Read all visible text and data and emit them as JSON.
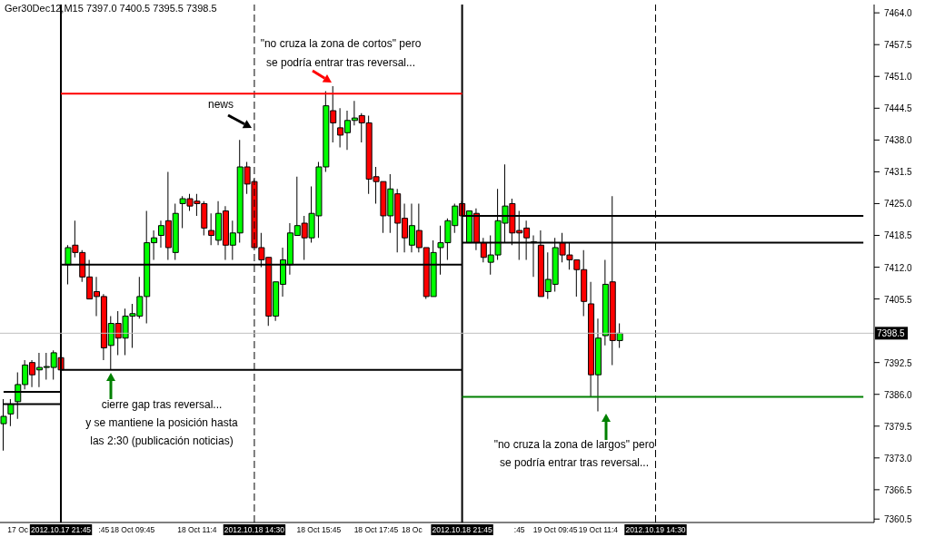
{
  "chart_data": {
    "type": "candlestick",
    "title": "Ger30Dec12,M15  7397.0 7400.5 7395.5 7398.5",
    "categories": [
      null,
      null,
      "17 Oc",
      null,
      null,
      null,
      null,
      null,
      "2012.10.17 21:45",
      null,
      null,
      null,
      null,
      null,
      ":45",
      null,
      null,
      null,
      "18 Oct 09:45",
      null,
      null,
      null,
      null,
      null,
      null,
      null,
      null,
      "18 Oct 11:4",
      null,
      null,
      null,
      null,
      null,
      null,
      null,
      "2012.10.18 14:30",
      null,
      null,
      null,
      null,
      null,
      null,
      null,
      null,
      "18 Oct 15:45",
      null,
      null,
      null,
      null,
      null,
      null,
      null,
      "18 Oct 17:45",
      null,
      null,
      null,
      null,
      "18 Oc",
      null,
      null,
      null,
      null,
      null,
      null,
      "2012.10.18 21:45",
      null,
      null,
      null,
      null,
      null,
      null,
      null,
      ":45",
      null,
      null,
      null,
      null,
      "19 Oct 09:45",
      null,
      null,
      null,
      null,
      null,
      "19 Oct 11:4",
      null,
      null,
      null,
      null,
      null,
      null,
      null,
      "2012.10.19 14:30",
      null,
      null,
      null,
      null,
      null,
      null,
      null,
      null,
      null,
      null,
      null,
      null,
      null,
      null,
      null,
      null,
      null,
      null,
      null,
      null,
      null,
      null,
      null,
      null,
      null,
      null,
      null,
      null,
      null,
      null
    ],
    "ohlc": [
      [
        7380,
        7385,
        7374.5,
        7381.5
      ],
      [
        7382,
        7385,
        7379.5,
        7384
      ],
      [
        7384.5,
        7390.5,
        7381,
        7388
      ],
      [
        7388,
        7393,
        7387,
        7392
      ],
      [
        7392.5,
        7393,
        7387.5,
        7390
      ],
      [
        7391,
        7394.5,
        7387.5,
        7391.5
      ],
      [
        7391.5,
        7394.5,
        7389,
        7391.5
      ],
      [
        7391.5,
        7395,
        7389,
        7394.5
      ],
      [
        7393.5,
        7394,
        7390.5,
        7391
      ],
      [
        7412.5,
        7416.5,
        7408.5,
        7416
      ],
      [
        7416.5,
        7421.5,
        7414,
        7415
      ],
      [
        7415,
        7415.5,
        7409,
        7410
      ],
      [
        7410,
        7413.5,
        7405.5,
        7405.5
      ],
      [
        7407,
        7410,
        7402,
        7406
      ],
      [
        7406,
        7406.5,
        7393,
        7395.5
      ],
      [
        7396,
        7402,
        7391,
        7400.5
      ],
      [
        7400.5,
        7403,
        7394,
        7397.5
      ],
      [
        7397.5,
        7403.5,
        7394,
        7402
      ],
      [
        7402,
        7404.5,
        7395.5,
        7402.5
      ],
      [
        7402,
        7410,
        7401.5,
        7406
      ],
      [
        7406,
        7423.5,
        7400.5,
        7417
      ],
      [
        7417,
        7419.5,
        7413.5,
        7418
      ],
      [
        7418.5,
        7421.5,
        7416,
        7420.5
      ],
      [
        7421.5,
        7431.5,
        7413.5,
        7416
      ],
      [
        7415,
        7425,
        7413.5,
        7423
      ],
      [
        7425,
        7426.5,
        7420,
        7426
      ],
      [
        7426,
        7427,
        7423.5,
        7424.5
      ],
      [
        7425.5,
        7427,
        7422.5,
        7425
      ],
      [
        7425,
        7425.5,
        7418.5,
        7420
      ],
      [
        7419.5,
        7423,
        7416.5,
        7418.5
      ],
      [
        7417.5,
        7425.5,
        7416.5,
        7423
      ],
      [
        7423.5,
        7424.5,
        7413.5,
        7416.5
      ],
      [
        7416.5,
        7421.5,
        7413.5,
        7419
      ],
      [
        7419,
        7438,
        7417,
        7432.5
      ],
      [
        7432.5,
        7433.5,
        7427,
        7429
      ],
      [
        7429.5,
        7430,
        7416,
        7416
      ],
      [
        7416,
        7419,
        7412,
        7413.5
      ],
      [
        7414,
        7414,
        7400,
        7402
      ],
      [
        7402,
        7409,
        7401,
        7409
      ],
      [
        7408.5,
        7416,
        7406,
        7413.5
      ],
      [
        7412.5,
        7421,
        7410.5,
        7419
      ],
      [
        7418.5,
        7430.5,
        7418.5,
        7420.5
      ],
      [
        7421,
        7422.5,
        7413.5,
        7418
      ],
      [
        7418,
        7428.5,
        7417,
        7423
      ],
      [
        7422.5,
        7433.5,
        7418,
        7432.5
      ],
      [
        7432.5,
        7448,
        7431.5,
        7445
      ],
      [
        7444,
        7449,
        7437.5,
        7441.5
      ],
      [
        7440.5,
        7444.5,
        7436.5,
        7439
      ],
      [
        7439.5,
        7444,
        7436,
        7442
      ],
      [
        7442,
        7446,
        7441,
        7442.5
      ],
      [
        7443,
        7443.5,
        7437.5,
        7441.5
      ],
      [
        7441.5,
        7443,
        7427,
        7430
      ],
      [
        7430.5,
        7432.5,
        7425,
        7429.5
      ],
      [
        7429.5,
        7429.5,
        7419,
        7422.5
      ],
      [
        7422.5,
        7431,
        7419,
        7428
      ],
      [
        7427,
        7428,
        7415,
        7421
      ],
      [
        7422,
        7425,
        7415,
        7418
      ],
      [
        7416.5,
        7425,
        7415,
        7420.5
      ],
      [
        7419.5,
        7425,
        7415,
        7416
      ],
      [
        7416,
        7416,
        7405.5,
        7406
      ],
      [
        7406,
        7417.5,
        7406,
        7415
      ],
      [
        7416,
        7420.5,
        7410.5,
        7417
      ],
      [
        7417,
        7422,
        7413.5,
        7421.5
      ],
      [
        7420.5,
        7425,
        7419,
        7424.5
      ],
      [
        7425,
        7425.5,
        7422.5,
        7422.5
      ],
      [
        7417,
        7423.5,
        7417,
        7423.5
      ],
      [
        7423,
        7424,
        7415.5,
        7417
      ],
      [
        7417,
        7418,
        7413,
        7414
      ],
      [
        7413,
        7418.5,
        7410.5,
        7414.5
      ],
      [
        7414.5,
        7428,
        7413.5,
        7421.5
      ],
      [
        7421,
        7433,
        7417,
        7424.5
      ],
      [
        7425,
        7426,
        7416.5,
        7419
      ],
      [
        7419.5,
        7423.5,
        7413.5,
        7419
      ],
      [
        7420,
        7421.5,
        7413.5,
        7418
      ],
      [
        7417,
        7418.5,
        7410,
        7417
      ],
      [
        7416.5,
        7419.5,
        7406,
        7406
      ],
      [
        7407,
        7415,
        7405.5,
        7409.5
      ],
      [
        7408.5,
        7418,
        7407,
        7416
      ],
      [
        7417,
        7419,
        7413,
        7414.5
      ],
      [
        7414.5,
        7417,
        7411.5,
        7413.5
      ],
      [
        7413.5,
        7413.5,
        7406,
        7411.5
      ],
      [
        7411.5,
        7415.5,
        7402,
        7405
      ],
      [
        7404.5,
        7409,
        7385.5,
        7390
      ],
      [
        7390,
        7401.5,
        7382.5,
        7397.5
      ],
      [
        7398,
        7413.5,
        7396,
        7408.5
      ],
      [
        7409,
        7426.5,
        7392,
        7397
      ],
      [
        7397,
        7400.5,
        7395.5,
        7398.5
      ],
      null,
      null,
      null,
      null,
      null,
      null,
      null,
      null,
      null,
      null,
      null,
      null,
      null,
      null,
      null,
      null,
      null,
      null,
      null,
      null,
      null,
      null,
      null,
      null,
      null,
      null,
      null,
      null,
      null,
      null,
      null,
      null,
      null,
      null,
      null
    ],
    "colors": [
      "#00ff00",
      "#00ff00",
      "#00ff00",
      "#00ff00",
      "#ff0000",
      "#00ff00",
      "#00ff00",
      "#00ff00",
      "#ff0000",
      "#00ff00",
      "#ff0000",
      "#ff0000",
      "#ff0000",
      "#ff0000",
      "#ff0000",
      "#00ff00",
      "#ff0000",
      "#00ff00",
      "#00ff00",
      "#00ff00",
      "#00ff00",
      "#00ff00",
      "#00ff00",
      "#ff0000",
      "#00ff00",
      "#00ff00",
      "#ff0000",
      "#ff0000",
      "#ff0000",
      "#ff0000",
      "#00ff00",
      "#ff0000",
      "#00ff00",
      "#00ff00",
      "#ff0000",
      "#ff0000",
      "#ff0000",
      "#ff0000",
      "#00ff00",
      "#00ff00",
      "#00ff00",
      "#00ff00",
      "#ff0000",
      "#00ff00",
      "#00ff00",
      "#00ff00",
      "#ff0000",
      "#ff0000",
      "#00ff00",
      "#00ff00",
      "#ff0000",
      "#ff0000",
      "#ff0000",
      "#ff0000",
      "#00ff00",
      "#ff0000",
      "#ff0000",
      "#00ff00",
      "#ff0000",
      "#ff0000",
      "#00ff00",
      "#00ff00",
      "#00ff00",
      "#00ff00",
      "#ff0000",
      "#00ff00",
      "#ff0000",
      "#ff0000",
      "#00ff00",
      "#00ff00",
      "#00ff00",
      "#ff0000",
      "#ff0000",
      "#ff0000",
      "#00ff00",
      "#ff0000",
      "#00ff00",
      "#00ff00",
      "#ff0000",
      "#ff0000",
      "#ff0000",
      "#ff0000",
      "#ff0000",
      "#00ff00",
      "#00ff00",
      "#ff0000",
      "#00ff00",
      null,
      null,
      null,
      null,
      null,
      null,
      null,
      null,
      null,
      null,
      null,
      null,
      null,
      null,
      null,
      null,
      null,
      null,
      null,
      null,
      null,
      null,
      null,
      null,
      null,
      null,
      null,
      null,
      null,
      null,
      null,
      null,
      null,
      null,
      null
    ],
    "series": [
      {
        "type": "line",
        "color": "#000000",
        "values": [
          7386.5,
          7386.5,
          7386.5,
          7386.5,
          7386.5,
          7386.5,
          7386.5,
          7386.5,
          7386.5,
          null,
          null,
          null,
          null,
          null,
          null,
          null,
          null,
          null,
          null,
          null,
          null,
          null,
          null,
          null,
          null,
          null,
          null,
          null,
          null,
          null,
          null,
          null,
          null,
          null,
          null,
          null,
          null,
          null,
          null,
          null,
          null,
          null,
          null,
          null,
          null,
          null,
          null,
          null,
          null,
          null,
          null,
          null,
          null,
          null,
          null,
          null,
          null,
          null,
          null,
          null,
          null,
          null,
          null,
          null,
          null,
          null,
          null,
          null,
          null,
          null,
          null,
          null,
          null,
          null,
          null,
          null,
          null,
          null,
          null,
          null,
          null,
          null,
          null,
          null,
          null,
          null,
          null,
          null,
          null,
          null,
          null,
          null,
          null,
          null,
          null,
          null,
          null,
          null,
          null,
          null,
          null,
          null,
          null,
          null,
          null,
          null,
          null,
          null,
          null,
          null,
          null,
          null,
          null,
          null,
          null,
          null,
          null,
          null,
          null,
          null,
          null,
          null
        ]
      },
      {
        "type": "line",
        "color": "#000000",
        "values": [
          7384,
          7384,
          7384,
          7384,
          7384,
          7384,
          7384,
          7384,
          7384,
          null,
          null,
          null,
          null,
          null,
          null,
          null,
          null,
          null,
          null,
          null,
          null,
          null,
          null,
          null,
          null,
          null,
          null,
          null,
          null,
          null,
          null,
          null,
          null,
          null,
          null,
          null,
          null,
          null,
          null,
          null,
          null,
          null,
          null,
          null,
          null,
          null,
          null,
          null,
          null,
          null,
          null,
          null,
          null,
          null,
          null,
          null,
          null,
          null,
          null,
          null,
          null,
          null,
          null,
          null,
          null,
          null,
          null,
          null,
          null,
          null,
          null,
          null,
          null,
          null,
          null,
          null,
          null,
          null,
          null,
          null,
          null,
          null,
          null,
          null,
          null,
          null,
          null,
          null,
          null,
          null,
          null,
          null,
          null,
          null,
          null,
          null,
          null,
          null,
          null,
          null,
          null,
          null,
          null,
          null,
          null,
          null,
          null,
          null,
          null,
          null,
          null,
          null,
          null,
          null,
          null,
          null,
          null,
          null,
          null,
          null,
          null,
          null
        ]
      },
      {
        "type": "line",
        "color": "#ff0000",
        "values": [
          null,
          null,
          null,
          null,
          null,
          null,
          null,
          null,
          7447.5,
          7447.5,
          7447.5,
          7447.5,
          7447.5,
          7447.5,
          7447.5,
          7447.5,
          7447.5,
          7447.5,
          7447.5,
          7447.5,
          7447.5,
          7447.5,
          7447.5,
          7447.5,
          7447.5,
          7447.5,
          7447.5,
          7447.5,
          7447.5,
          7447.5,
          7447.5,
          7447.5,
          7447.5,
          7447.5,
          7447.5,
          7447.5,
          7447.5,
          7447.5,
          7447.5,
          7447.5,
          7447.5,
          7447.5,
          7447.5,
          7447.5,
          7447.5,
          7447.5,
          7447.5,
          7447.5,
          7447.5,
          7447.5,
          7447.5,
          7447.5,
          7447.5,
          7447.5,
          7447.5,
          7447.5,
          7447.5,
          7447.5,
          7447.5,
          7447.5,
          7447.5,
          7447.5,
          7447.5,
          7447.5,
          7447.5,
          null,
          null,
          null,
          null,
          null,
          null,
          null,
          null,
          null,
          null,
          null,
          null,
          null,
          null,
          null,
          null,
          null,
          null,
          null,
          null,
          null,
          null,
          null,
          null,
          null,
          null,
          null,
          null,
          null,
          null,
          null,
          null,
          null,
          null,
          null,
          null,
          null,
          null,
          null,
          null,
          null,
          null,
          null,
          null,
          null,
          null,
          null,
          null,
          null,
          null,
          null,
          null,
          null,
          null,
          null,
          null,
          null
        ]
      },
      {
        "type": "line",
        "color": "#000000",
        "values": [
          null,
          null,
          null,
          null,
          null,
          null,
          null,
          null,
          7412.5,
          7412.5,
          7412.5,
          7412.5,
          7412.5,
          7412.5,
          7412.5,
          7412.5,
          7412.5,
          7412.5,
          7412.5,
          7412.5,
          7412.5,
          7412.5,
          7412.5,
          7412.5,
          7412.5,
          7412.5,
          7412.5,
          7412.5,
          7412.5,
          7412.5,
          7412.5,
          7412.5,
          7412.5,
          7412.5,
          7412.5,
          7412.5,
          7412.5,
          7412.5,
          7412.5,
          7412.5,
          7412.5,
          7412.5,
          7412.5,
          7412.5,
          7412.5,
          7412.5,
          7412.5,
          7412.5,
          7412.5,
          7412.5,
          7412.5,
          7412.5,
          7412.5,
          7412.5,
          7412.5,
          7412.5,
          7412.5,
          7412.5,
          7412.5,
          7412.5,
          7412.5,
          7412.5,
          7412.5,
          7412.5,
          7412.5,
          null,
          null,
          null,
          null,
          null,
          null,
          null,
          null,
          null,
          null,
          null,
          null,
          null,
          null,
          null,
          null,
          null,
          null,
          null,
          null,
          null,
          null,
          null,
          null,
          null,
          null,
          null,
          null,
          null,
          null,
          null,
          null,
          null,
          null,
          null,
          null,
          null,
          null,
          null,
          null,
          null,
          null,
          null,
          null,
          null,
          null,
          null,
          null,
          null,
          null,
          null,
          null,
          null,
          null,
          null,
          null,
          null
        ]
      },
      {
        "type": "line",
        "color": "#000000",
        "values": [
          null,
          null,
          null,
          null,
          null,
          null,
          null,
          null,
          7391,
          7391,
          7391,
          7391,
          7391,
          7391,
          7391,
          7391,
          7391,
          7391,
          7391,
          7391,
          7391,
          7391,
          7391,
          7391,
          7391,
          7391,
          7391,
          7391,
          7391,
          7391,
          7391,
          7391,
          7391,
          7391,
          7391,
          7391,
          7391,
          7391,
          7391,
          7391,
          7391,
          7391,
          7391,
          7391,
          7391,
          7391,
          7391,
          7391,
          7391,
          7391,
          7391,
          7391,
          7391,
          7391,
          7391,
          7391,
          7391,
          7391,
          7391,
          7391,
          7391,
          7391,
          7391,
          7391,
          7391,
          null,
          null,
          null,
          null,
          null,
          null,
          null,
          null,
          null,
          null,
          null,
          null,
          null,
          null,
          null,
          null,
          null,
          null,
          null,
          null,
          null,
          null,
          null,
          null,
          null,
          null,
          null,
          null,
          null,
          null,
          null,
          null,
          null,
          null,
          null,
          null,
          null,
          null,
          null,
          null,
          null,
          null,
          null,
          null,
          null,
          null,
          null,
          null,
          null,
          null,
          null,
          null,
          null,
          null,
          null,
          null,
          null
        ]
      },
      {
        "type": "line",
        "color": "#000000",
        "values": [
          null,
          null,
          null,
          null,
          null,
          null,
          null,
          null,
          null,
          null,
          null,
          null,
          null,
          null,
          null,
          null,
          null,
          null,
          null,
          null,
          null,
          null,
          null,
          null,
          null,
          null,
          null,
          null,
          null,
          null,
          null,
          null,
          null,
          null,
          null,
          null,
          null,
          null,
          null,
          null,
          null,
          null,
          null,
          null,
          null,
          null,
          null,
          null,
          null,
          null,
          null,
          null,
          null,
          null,
          null,
          null,
          null,
          null,
          null,
          null,
          null,
          null,
          null,
          null,
          7422.5,
          7422.5,
          7422.5,
          7422.5,
          7422.5,
          7422.5,
          7422.5,
          7422.5,
          7422.5,
          7422.5,
          7422.5,
          7422.5,
          7422.5,
          7422.5,
          7422.5,
          7422.5,
          7422.5,
          7422.5,
          7422.5,
          7422.5,
          7422.5,
          7422.5,
          7422.5,
          7422.5,
          7422.5,
          7422.5,
          7422.5,
          7422.5,
          7422.5,
          7422.5,
          7422.5,
          7422.5,
          7422.5,
          7422.5,
          7422.5,
          7422.5,
          7422.5,
          7422.5,
          7422.5,
          7422.5,
          7422.5,
          7422.5,
          7422.5,
          7422.5,
          7422.5,
          7422.5,
          7422.5,
          7422.5,
          7422.5,
          7422.5,
          7422.5,
          7422.5,
          7422.5,
          7422.5,
          7422.5,
          7422.5,
          7422.5,
          null
        ]
      },
      {
        "type": "line",
        "color": "#000000",
        "values": [
          null,
          null,
          null,
          null,
          null,
          null,
          null,
          null,
          null,
          null,
          null,
          null,
          null,
          null,
          null,
          null,
          null,
          null,
          null,
          null,
          null,
          null,
          null,
          null,
          null,
          null,
          null,
          null,
          null,
          null,
          null,
          null,
          null,
          null,
          null,
          null,
          null,
          null,
          null,
          null,
          null,
          null,
          null,
          null,
          null,
          null,
          null,
          null,
          null,
          null,
          null,
          null,
          null,
          null,
          null,
          null,
          null,
          null,
          null,
          null,
          null,
          null,
          null,
          null,
          7417,
          7417,
          7417,
          7417,
          7417,
          7417,
          7417,
          7417,
          7417,
          7417,
          7417,
          7417,
          7417,
          7417,
          7417,
          7417,
          7417,
          7417,
          7417,
          7417,
          7417,
          7417,
          7417,
          7417,
          7417,
          7417,
          7417,
          7417,
          7417,
          7417,
          7417,
          7417,
          7417,
          7417,
          7417,
          7417,
          7417,
          7417,
          7417,
          7417,
          7417,
          7417,
          7417,
          7417,
          7417,
          7417,
          7417,
          7417,
          7417,
          7417,
          7417,
          7417,
          7417,
          7417,
          7417,
          7417,
          7417,
          null
        ]
      },
      {
        "type": "line",
        "color": "#008000",
        "values": [
          null,
          null,
          null,
          null,
          null,
          null,
          null,
          null,
          null,
          null,
          null,
          null,
          null,
          null,
          null,
          null,
          null,
          null,
          null,
          null,
          null,
          null,
          null,
          null,
          null,
          null,
          null,
          null,
          null,
          null,
          null,
          null,
          null,
          null,
          null,
          null,
          null,
          null,
          null,
          null,
          null,
          null,
          null,
          null,
          null,
          null,
          null,
          null,
          null,
          null,
          null,
          null,
          null,
          null,
          null,
          null,
          null,
          null,
          null,
          null,
          null,
          null,
          null,
          null,
          7385.5,
          7385.5,
          7385.5,
          7385.5,
          7385.5,
          7385.5,
          7385.5,
          7385.5,
          7385.5,
          7385.5,
          7385.5,
          7385.5,
          7385.5,
          7385.5,
          7385.5,
          7385.5,
          7385.5,
          7385.5,
          7385.5,
          7385.5,
          7385.5,
          7385.5,
          7385.5,
          7385.5,
          7385.5,
          7385.5,
          7385.5,
          7385.5,
          7385.5,
          7385.5,
          7385.5,
          7385.5,
          7385.5,
          7385.5,
          7385.5,
          7385.5,
          7385.5,
          7385.5,
          7385.5,
          7385.5,
          7385.5,
          7385.5,
          7385.5,
          7385.5,
          7385.5,
          7385.5,
          7385.5,
          7385.5,
          7385.5,
          7385.5,
          7385.5,
          7385.5,
          7385.5,
          7385.5,
          7385.5,
          7385.5,
          7385.5,
          null
        ]
      }
    ],
    "ref_lines": [
      {
        "axis": "x",
        "value": "2012.10.17 21:45",
        "color": "#000000",
        "line_style": "solid"
      },
      {
        "axis": "x",
        "value": "2012.10.18 14:30",
        "color": "#000000",
        "line_style": "dashed"
      },
      {
        "axis": "x",
        "value": "2012.10.18 21:45",
        "color": "#000000",
        "line_style": "solid"
      },
      {
        "axis": "x",
        "value": "2012.10.19 14:30",
        "color": "#000000",
        "line_style": "dashed"
      },
      {
        "axis": "y",
        "value": 7398.5,
        "label": "7398.5",
        "color": "#c0c0c0"
      }
    ],
    "ylim": [
      7359.8,
      7465.7
    ],
    "yticks": [
      {
        "value": 7464,
        "label": "7464.0"
      },
      {
        "value": 7457.5,
        "label": "7457.5"
      },
      {
        "value": 7451,
        "label": "7451.0"
      },
      {
        "value": 7444.5,
        "label": "7444.5"
      },
      {
        "value": 7438,
        "label": "7438.0"
      },
      {
        "value": 7431.5,
        "label": "7431.5"
      },
      {
        "value": 7425,
        "label": "7425.0"
      },
      {
        "value": 7418.5,
        "label": "7418.5"
      },
      {
        "value": 7412,
        "label": "7412.0"
      },
      {
        "value": 7405.5,
        "label": "7405.5"
      },
      {
        "value": 7392.5,
        "label": "7392.5"
      },
      {
        "value": 7386,
        "label": "7386.0"
      },
      {
        "value": 7379.5,
        "label": "7379.5"
      },
      {
        "value": 7373,
        "label": "7373.0"
      },
      {
        "value": 7366.5,
        "label": "7366.5"
      },
      {
        "value": 7360.5,
        "label": "7360.5"
      }
    ],
    "annotations": [
      "news",
      "\"no cruza la zona de cortos\" pero\nse podría entrar tras reversal...",
      "cierre gap tras reversal...\ny se mantiene la posición hasta\nlas 2:30 (publicación noticias)",
      "\"no cruza la zona de largos\" pero\nse podría entrar tras reversal..."
    ],
    "grid": false
  }
}
